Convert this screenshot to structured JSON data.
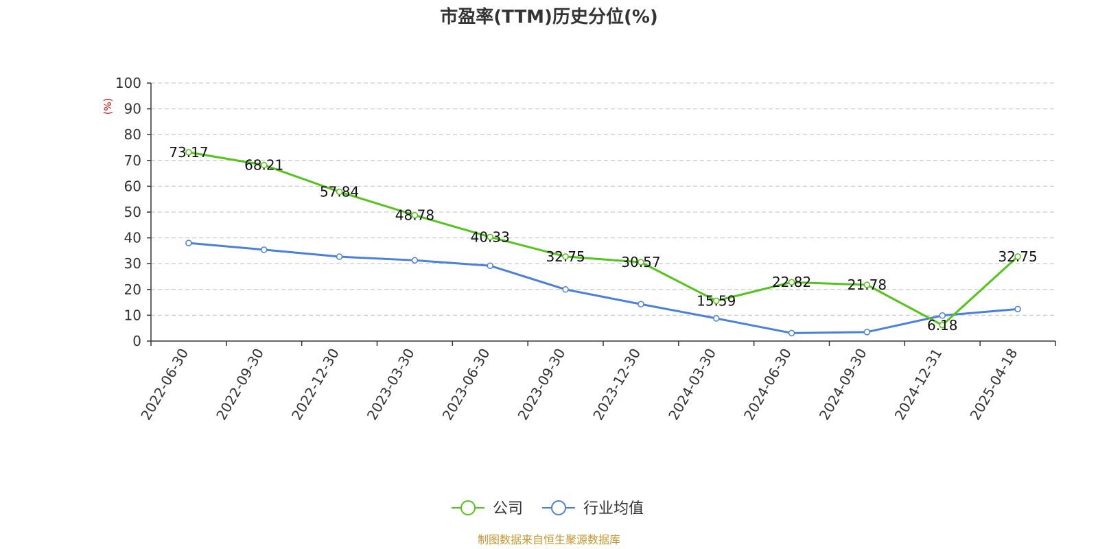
{
  "chart_data": {
    "type": "line",
    "title": "市盈率(TTM)历史分位(%)",
    "ylabel": "(%)",
    "xlabel": "",
    "ylim": [
      0,
      100
    ],
    "yticks": [
      0,
      10,
      20,
      30,
      40,
      50,
      60,
      70,
      80,
      90,
      100
    ],
    "grid": true,
    "legend_position": "bottom-center",
    "categories": [
      "2022-06-30",
      "2022-09-30",
      "2022-12-30",
      "2023-03-30",
      "2023-06-30",
      "2023-09-30",
      "2023-12-30",
      "2024-03-30",
      "2024-06-30",
      "2024-09-30",
      "2024-12-31",
      "2025-04-18"
    ],
    "series": [
      {
        "name": "公司",
        "color": "#52c41a",
        "values": [
          73.17,
          68.21,
          57.84,
          48.78,
          40.33,
          32.75,
          30.57,
          15.59,
          22.82,
          21.78,
          6.18,
          32.75
        ],
        "labels": [
          "73.17",
          "68.21",
          "57.84",
          "48.78",
          "40.33",
          "32.75",
          "30.57",
          "15.59",
          "22.82",
          "21.78",
          "6.18",
          "32.75"
        ]
      },
      {
        "name": "行业均值",
        "color": "#4a7fdc",
        "values": [
          38.0,
          35.4,
          32.7,
          31.3,
          29.2,
          20.0,
          14.3,
          8.8,
          3.1,
          3.5,
          9.9,
          12.4
        ]
      }
    ]
  },
  "source": "制图数据来自恒生聚源数据库",
  "colors": {
    "unit": "#e00000",
    "source": "#c8962d",
    "axis": "#333333",
    "grid": "#cccccc"
  }
}
